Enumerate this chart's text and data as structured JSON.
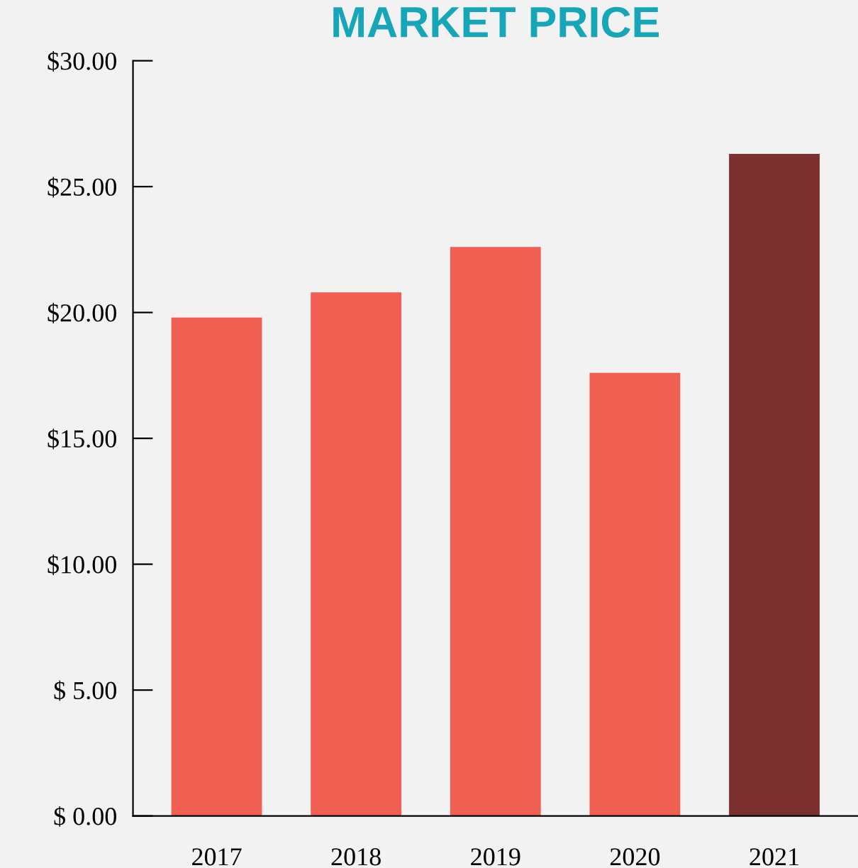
{
  "chart_data": {
    "type": "bar",
    "title": "MARKET PRICE",
    "categories": [
      "2017",
      "2018",
      "2019",
      "2020",
      "2021"
    ],
    "values": [
      19.8,
      20.8,
      22.6,
      17.6,
      26.3
    ],
    "colors": [
      "#f05f51",
      "#f05f51",
      "#f05f51",
      "#f05f51",
      "#7a302c"
    ],
    "ylim": [
      0,
      30
    ],
    "yticks": [
      {
        "value": 0,
        "label": "$ 0.00"
      },
      {
        "value": 5,
        "label": "$ 5.00"
      },
      {
        "value": 10,
        "label": "$10.00"
      },
      {
        "value": 15,
        "label": "$15.00"
      },
      {
        "value": 20,
        "label": "$20.00"
      },
      {
        "value": 25,
        "label": "$25.00"
      },
      {
        "value": 30,
        "label": "$30.00"
      }
    ],
    "grid": false
  }
}
